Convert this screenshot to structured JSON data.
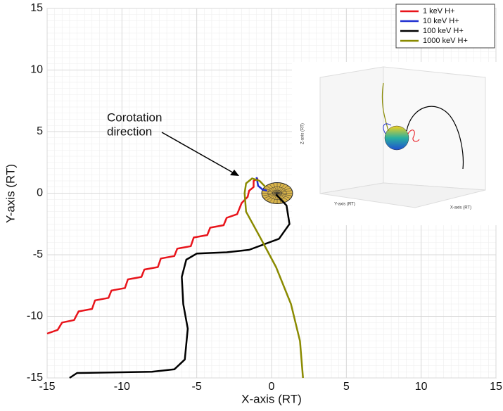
{
  "chart_data": {
    "type": "line",
    "x_label": "X-axis (RT)",
    "y_label": "Y-axis (RT)",
    "xlim": [
      -15,
      15
    ],
    "ylim": [
      -15,
      15
    ],
    "xticks": [
      -15,
      -10,
      -5,
      0,
      5,
      10,
      15
    ],
    "yticks": [
      -15,
      -10,
      -5,
      0,
      5,
      10,
      15
    ],
    "grid": true,
    "legend": "upper-right",
    "annotation": [
      "Corotation",
      "direction"
    ],
    "series": [
      {
        "name": "1 keV H+",
        "color": "#e8141b",
        "x": [
          -15,
          -14.3,
          -14,
          -13.2,
          -12.9,
          -12,
          -11.8,
          -10.9,
          -10.7,
          -9.8,
          -9.6,
          -8.7,
          -8.5,
          -7.6,
          -7.4,
          -6.5,
          -6.3,
          -5.4,
          -5.2,
          -4.3,
          -4.1,
          -3.2,
          -3.0,
          -2.3,
          -2.0,
          -1.6,
          -1.5,
          -1.2,
          -1.2,
          -0.9
        ],
        "values": [
          -11.4,
          -11.1,
          -10.5,
          -10.3,
          -9.6,
          -9.4,
          -8.7,
          -8.5,
          -7.9,
          -7.7,
          -7.0,
          -6.8,
          -6.2,
          -6.0,
          -5.3,
          -5.1,
          -4.5,
          -4.3,
          -3.6,
          -3.4,
          -2.8,
          -2.6,
          -2.0,
          -1.7,
          -0.8,
          -0.3,
          0.2,
          0.5,
          1.0,
          1.2
        ]
      },
      {
        "name": "10 keV H+",
        "color": "#1f2fd0",
        "x": [
          -1.0,
          -0.9,
          -0.6,
          -0.3
        ],
        "values": [
          1.3,
          0.6,
          0.3,
          0.2
        ]
      },
      {
        "name": "100 keV H+",
        "color": "#000000",
        "x": [
          -13.5,
          -13,
          -8,
          -6.5,
          -5.8,
          -5.6,
          -5.9,
          -6,
          -5.7,
          -5,
          -3,
          -1.5,
          0.5,
          1.2,
          1,
          0.3
        ],
        "values": [
          -15,
          -14.6,
          -14.5,
          -14.3,
          -13.5,
          -11,
          -9,
          -6.8,
          -5.4,
          -4.9,
          -4.8,
          -4.6,
          -3.7,
          -2.5,
          -1,
          -0.1
        ]
      },
      {
        "name": "1000 keV H+",
        "color": "#8a8a00",
        "x": [
          2.1,
          1.9,
          1.3,
          0.3,
          -0.8,
          -1.7,
          -1.8,
          -1.7,
          -1.3,
          -0.8,
          -0.4
        ],
        "values": [
          -15,
          -12,
          -9,
          -6,
          -3.5,
          -1.5,
          0,
          0.8,
          1.2,
          1.0,
          0.5
        ]
      }
    ]
  },
  "inset": {
    "x_label": "X-axis (RT)",
    "y_label": "Y-axis (RT)",
    "z_label": "Z-axis (RT)"
  }
}
